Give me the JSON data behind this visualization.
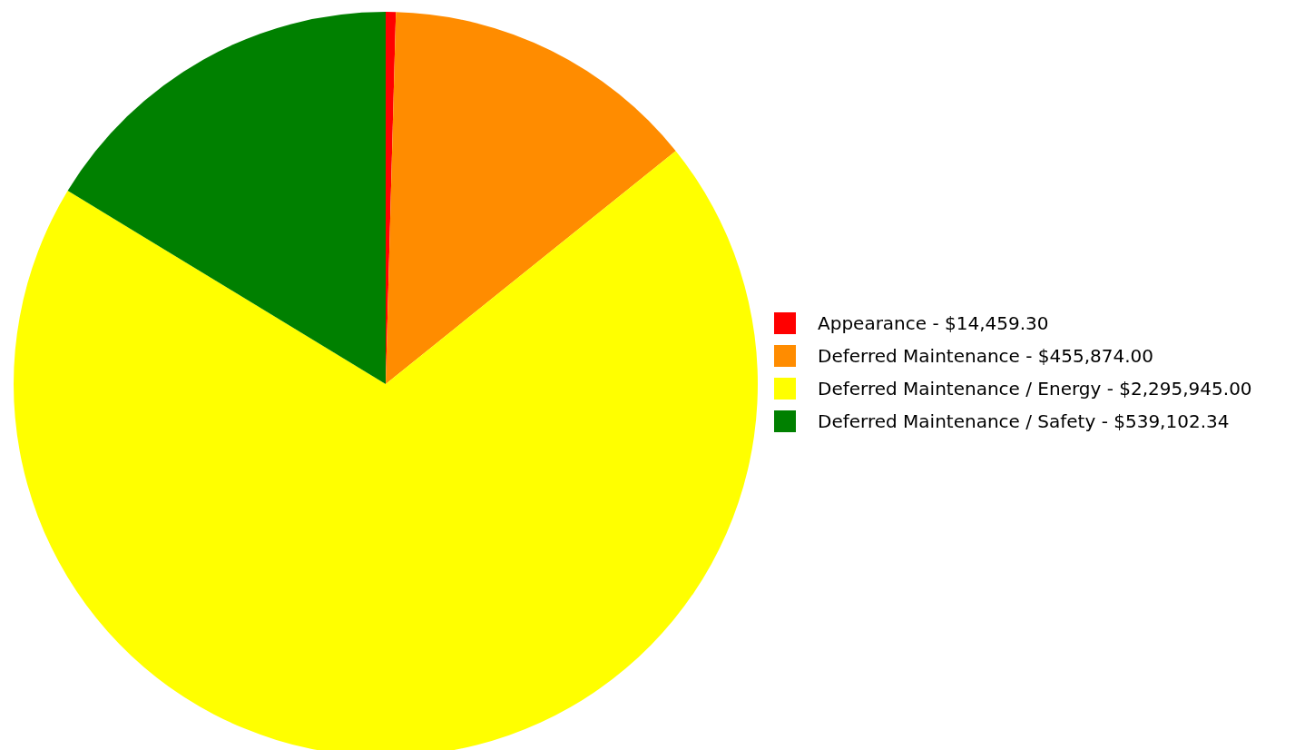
{
  "chart_data": {
    "type": "pie",
    "categories": [
      "Appearance",
      "Deferred Maintenance",
      "Deferred Maintenance / Energy",
      "Deferred Maintenance / Safety"
    ],
    "values": [
      14459.3,
      455874.0,
      2295945.0,
      539102.34
    ],
    "value_labels": [
      "$14,459.30",
      "$455,874.00",
      "$2,295,945.00",
      "$539,102.34"
    ],
    "colors": [
      "#ff0000",
      "#ff8c00",
      "#ffff00",
      "#008000"
    ],
    "legend": "right"
  }
}
